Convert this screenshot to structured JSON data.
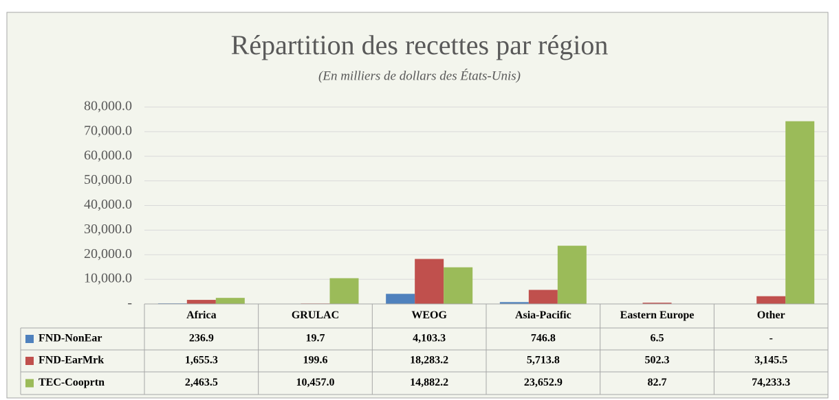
{
  "chart_data": {
    "type": "bar",
    "title": "Répartition des recettes par région",
    "subtitle": "(En milliers de dollars des États-Unis)",
    "categories": [
      "Africa",
      "GRULAC",
      "WEOG",
      "Asia-Pacific",
      "Eastern Europe",
      "Other"
    ],
    "series": [
      {
        "name": "FND-NonEar",
        "color": "#4f81bd",
        "values": [
          236.9,
          19.7,
          4103.3,
          746.8,
          6.5,
          0
        ],
        "value_labels": [
          "236.9",
          "19.7",
          "4,103.3",
          "746.8",
          "6.5",
          "-"
        ]
      },
      {
        "name": "FND-EarMrk",
        "color": "#c0504d",
        "values": [
          1655.3,
          199.6,
          18283.2,
          5713.8,
          502.3,
          3145.5
        ],
        "value_labels": [
          "1,655.3",
          "199.6",
          "18,283.2",
          "5,713.8",
          "502.3",
          "3,145.5"
        ]
      },
      {
        "name": "TEC-Cooprtn",
        "color": "#9bbb59",
        "values": [
          2463.5,
          10457.0,
          14882.2,
          23652.9,
          82.7,
          74233.3
        ],
        "value_labels": [
          "2,463.5",
          "10,457.0",
          "14,882.2",
          "23,652.9",
          "82.7",
          "74,233.3"
        ]
      }
    ],
    "ylim": [
      0,
      80000
    ],
    "yticks": [
      {
        "value": 0,
        "label": "-"
      },
      {
        "value": 10000,
        "label": "10,000.0"
      },
      {
        "value": 20000,
        "label": "20,000.0"
      },
      {
        "value": 30000,
        "label": "30,000.0"
      },
      {
        "value": 40000,
        "label": "40,000.0"
      },
      {
        "value": 50000,
        "label": "50,000.0"
      },
      {
        "value": 60000,
        "label": "60,000.0"
      },
      {
        "value": 70000,
        "label": "70,000.0"
      },
      {
        "value": 80000,
        "label": "80,000.0"
      }
    ],
    "grid": true
  }
}
